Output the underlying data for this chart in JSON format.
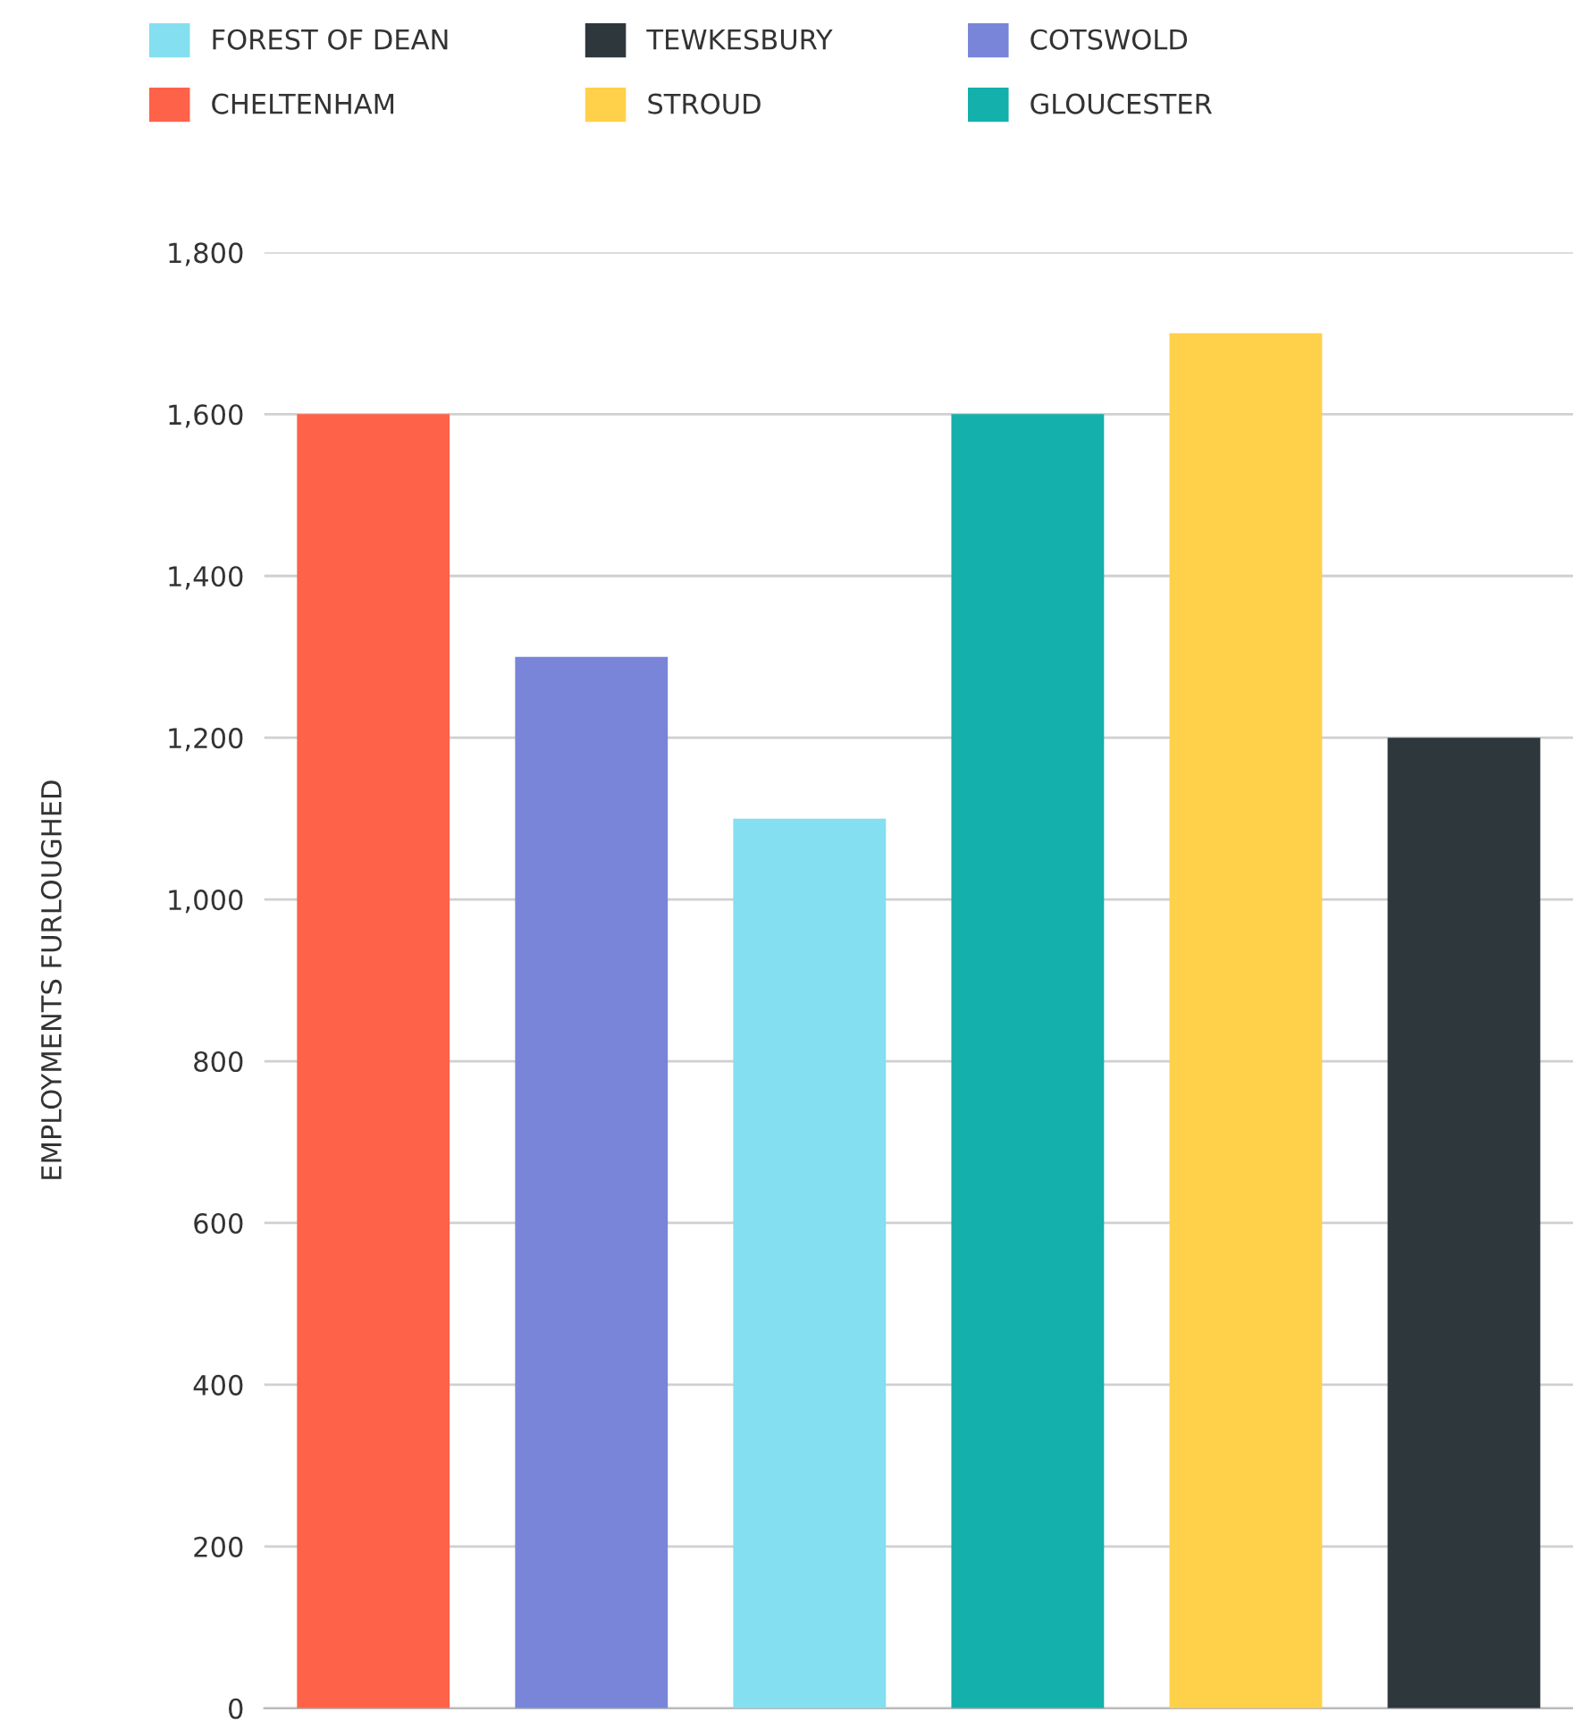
{
  "chart_data": {
    "type": "bar",
    "ylabel": "EMPLOYMENTS FURLOUGHED",
    "categories": [
      null,
      null,
      null,
      null,
      null,
      null
    ],
    "series": [
      {
        "name": "FOREST OF DEAN",
        "color": "#84dff0",
        "values": [
          null,
          null,
          1100,
          null,
          null,
          null
        ]
      },
      {
        "name": "TEWKESBURY",
        "color": "#2d373c",
        "values": [
          null,
          null,
          null,
          null,
          null,
          1200
        ]
      },
      {
        "name": "COTSWOLD",
        "color": "#7885d9",
        "values": [
          null,
          1300,
          null,
          null,
          null,
          null
        ]
      },
      {
        "name": "CHELTENHAM",
        "color": "#fe6249",
        "values": [
          1600,
          null,
          null,
          null,
          null,
          null
        ]
      },
      {
        "name": "STROUD",
        "color": "#ffd04a",
        "values": [
          null,
          null,
          null,
          null,
          1700,
          null
        ]
      },
      {
        "name": "GLOUCESTER",
        "color": "#14b0ab",
        "values": [
          null,
          null,
          null,
          1600,
          null,
          null
        ]
      }
    ],
    "ylim": [
      0,
      1800
    ],
    "yticks": [
      0,
      200,
      400,
      600,
      800,
      {
        "value": 1000,
        "label": "1,000"
      },
      {
        "value": 1200,
        "label": "1,200"
      },
      {
        "value": 1400,
        "label": "1,400"
      },
      {
        "value": 1600,
        "label": "1,600"
      },
      {
        "value": 1800,
        "label": "1,800"
      }
    ],
    "grid": "y",
    "legend": "top"
  }
}
